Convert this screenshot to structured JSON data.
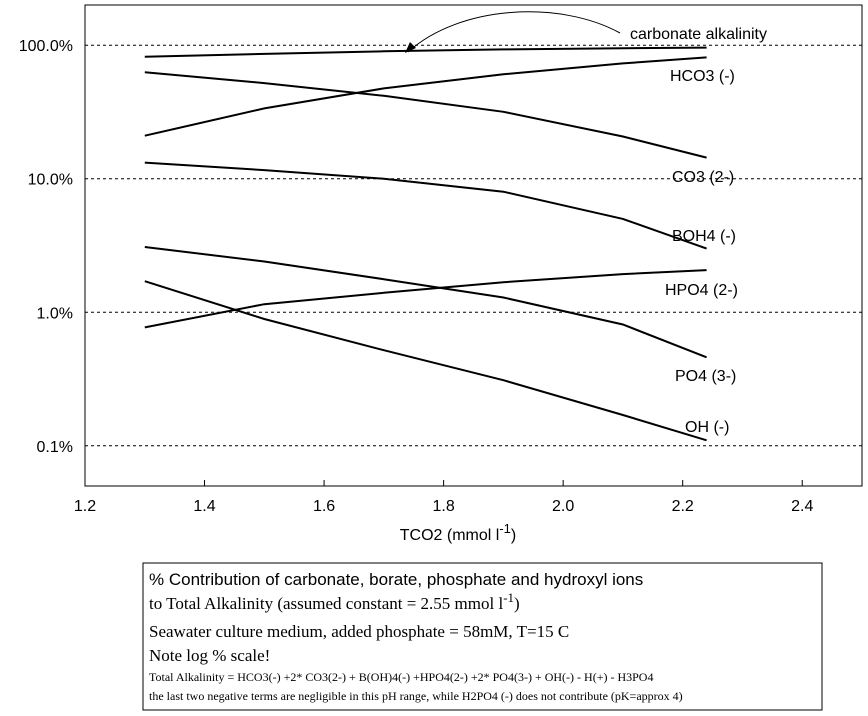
{
  "chart_data": {
    "type": "line",
    "log_y": true,
    "grid": true,
    "xlabel": {
      "text": "TCO2 (mmol l",
      "sup": "-1",
      "after": ")"
    },
    "xlim": [
      1.2,
      2.5
    ],
    "xticks": [
      1.2,
      1.4,
      1.6,
      1.8,
      {
        "value": 2,
        "label": "2.0"
      },
      2.2,
      2.4
    ],
    "ylim": [
      0.05,
      200
    ],
    "yticks": [
      {
        "value": 0.1,
        "label": "0.1%"
      },
      {
        "value": 1,
        "label": "1.0%"
      },
      {
        "value": 10,
        "label": "10.0%"
      },
      {
        "value": 100,
        "label": "100.0%"
      }
    ],
    "x": [
      1.3,
      1.5,
      1.7,
      1.9,
      2.1,
      2.24
    ],
    "series": [
      {
        "name": "carbonate alkalinity",
        "color": "#000000",
        "values": [
          82,
          86,
          90,
          93,
          95,
          96
        ]
      },
      {
        "name": "HCO3 (-)",
        "color": "#000000",
        "values": [
          21,
          33.6,
          47.5,
          60.5,
          73,
          81
        ]
      },
      {
        "name": "CO3 (2-)",
        "color": "#000000",
        "values": [
          62.7,
          52,
          41.8,
          31.7,
          20.7,
          14.4
        ]
      },
      {
        "name": "BOH4 (-)",
        "color": "#000000",
        "values": [
          13.2,
          11.6,
          10,
          8,
          5,
          3.0
        ]
      },
      {
        "name": "HPO4 (2-)",
        "color": "#000000",
        "values": [
          0.77,
          1.15,
          1.4,
          1.68,
          1.93,
          2.07
        ]
      },
      {
        "name": "PO4 (3-)",
        "color": "#000000",
        "values": [
          3.08,
          2.4,
          1.77,
          1.29,
          0.81,
          0.46
        ]
      },
      {
        "name": "OH (-)",
        "color": "#000000",
        "values": [
          1.71,
          0.89,
          0.52,
          0.31,
          0.17,
          0.11
        ]
      }
    ],
    "caption": [
      {
        "text": "% Contribution of carbonate, borate, phosphate and hydroxyl ions"
      },
      {
        "text": " to Total Alkalinity (assumed constant = 2.55 mmol l",
        "sup": "-1",
        "after": ")"
      },
      {
        "text": "Seawater culture medium, added phosphate = 58mM, T=15 C"
      },
      {
        "text": "Note log % scale!"
      },
      {
        "text": "Total Alkalinity = HCO3(-) +2* CO3(2-) + B(OH)4(-) +HPO4(2-) +2* PO4(3-) + OH(-) - H(+) - H3PO4"
      },
      {
        "text": "the last two negative terms are negligible in this pH range, while H2PO4 (-) does not contribute (pK=approx 4)"
      }
    ]
  }
}
